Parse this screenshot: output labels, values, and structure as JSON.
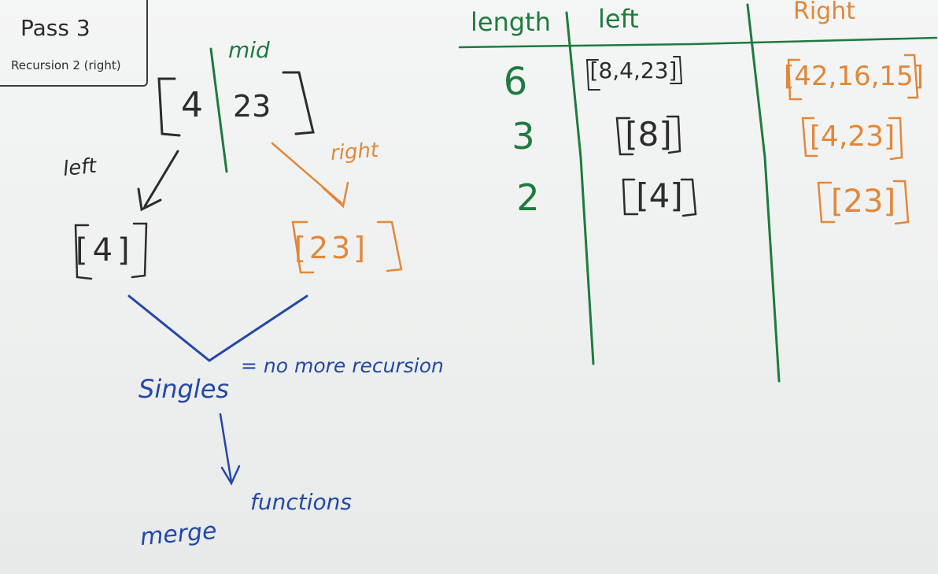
{
  "pass_label": {
    "title": "Pass 3",
    "subtitle": "Recursion 2 (right)"
  },
  "split": {
    "array_left": "4",
    "array_right": "23",
    "mid_label": "mid",
    "left_label": "left",
    "right_label": "right"
  },
  "children": {
    "left_child": "[4]",
    "right_child": "[23]"
  },
  "conclusion": {
    "singles": "Singles",
    "equals_text": "= no more recursion",
    "merge_word": "merge",
    "functions_word": "functions"
  },
  "table": {
    "headers": [
      "length",
      "left",
      "Right"
    ],
    "rows": [
      {
        "length": "6",
        "left": "[8,4,23]",
        "right": "[42,16,15]"
      },
      {
        "length": "3",
        "left": "[8]",
        "right": "[4,23]"
      },
      {
        "length": "2",
        "left": "[4]",
        "right": "[23]"
      }
    ]
  },
  "colors": {
    "marker_black": "#2c2c2c",
    "marker_green": "#1f7a3f",
    "marker_orange": "#e0883a",
    "marker_blue": "#2447a8"
  }
}
